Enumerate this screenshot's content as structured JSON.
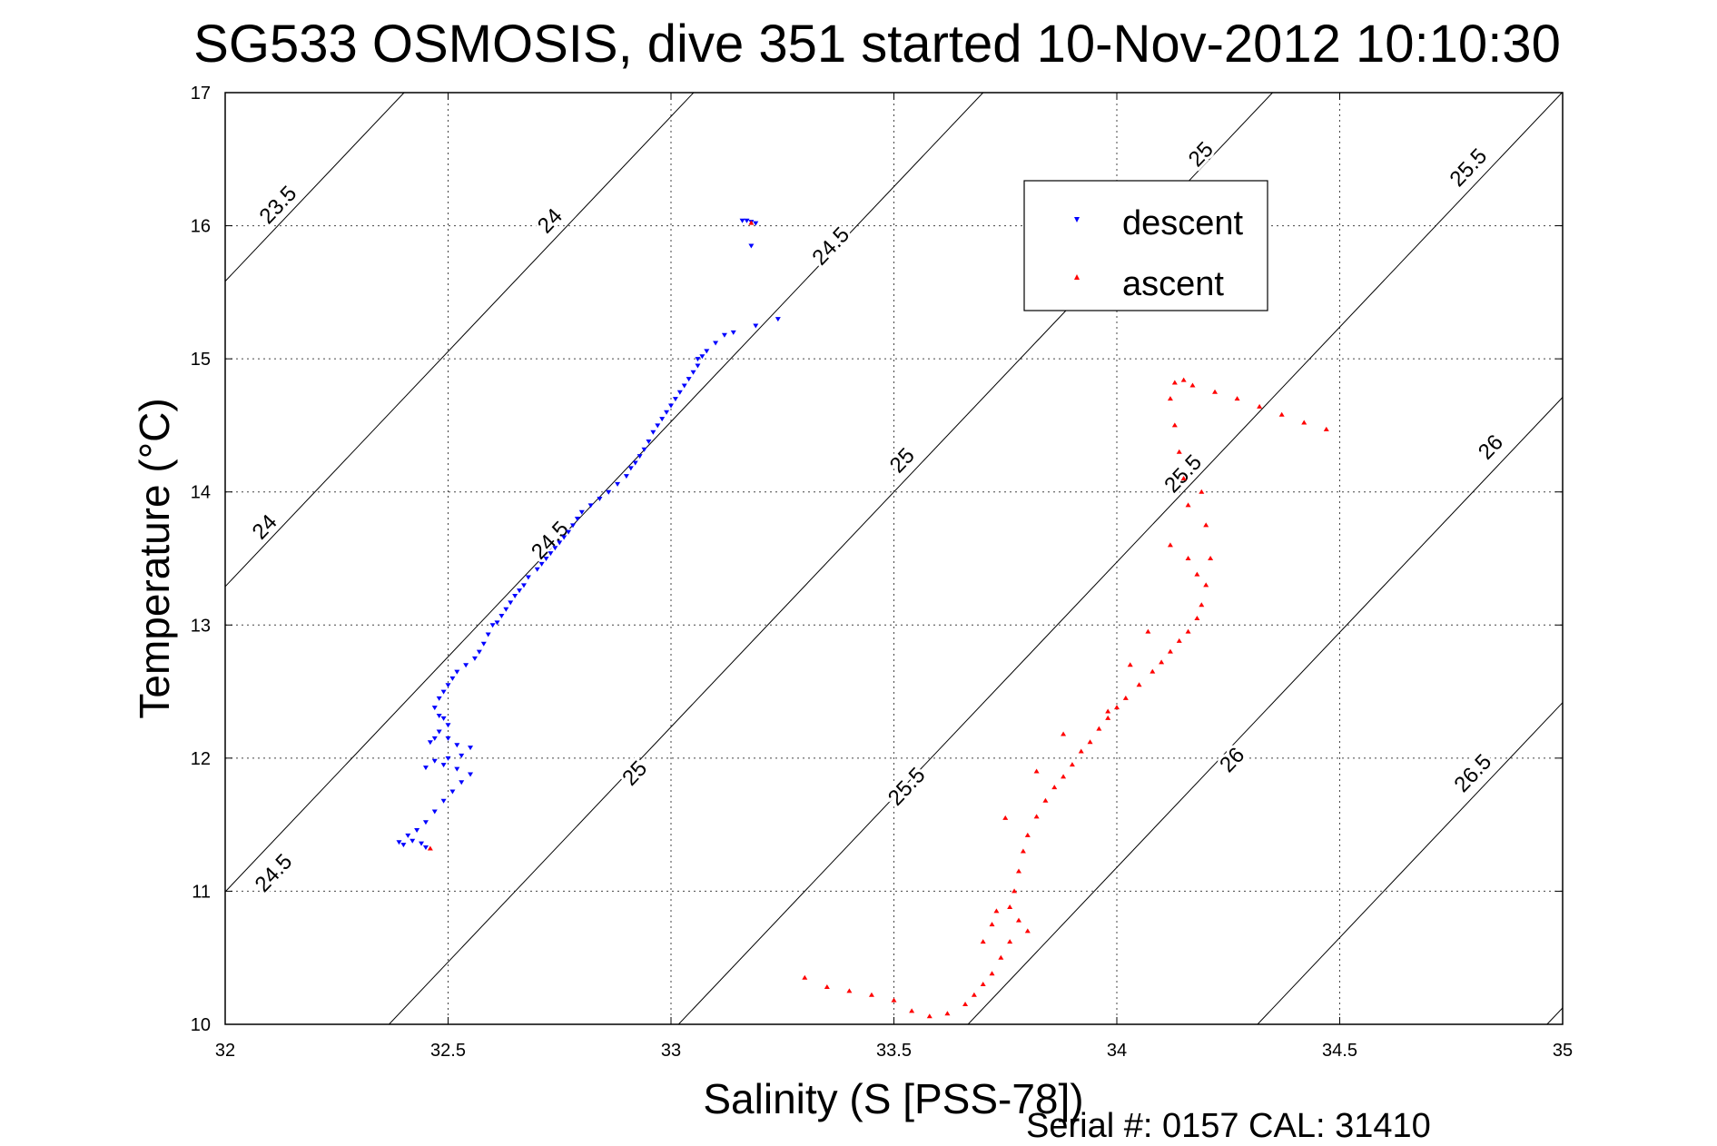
{
  "chart_data": {
    "type": "scatter",
    "title": "SG533 OSMOSIS, dive 351 started 10-Nov-2012 10:10:30",
    "xlabel": "Salinity (S [PSS-78])",
    "ylabel": "Temperature (°C)",
    "xlim": [
      32,
      35
    ],
    "ylim": [
      10,
      17
    ],
    "xticks": [
      "32",
      "32.5",
      "33",
      "33.5",
      "34",
      "34.5",
      "35"
    ],
    "yticks": [
      "10",
      "11",
      "12",
      "13",
      "14",
      "15",
      "16",
      "17"
    ],
    "grid": true,
    "legend_position": "top-right",
    "density_contours": {
      "color": "#000000",
      "levels": [
        "23.5",
        "24",
        "24.5",
        "25",
        "25.5",
        "26",
        "26.5"
      ],
      "labels": [
        {
          "text": "23.5",
          "s": 32.13,
          "t": 16.12
        },
        {
          "text": "24",
          "s": 32.74,
          "t": 16.0
        },
        {
          "text": "24.5",
          "s": 33.37,
          "t": 15.81
        },
        {
          "text": "25",
          "s": 34.2,
          "t": 16.5
        },
        {
          "text": "25.5",
          "s": 34.8,
          "t": 16.4
        },
        {
          "text": "24",
          "s": 32.1,
          "t": 13.7
        },
        {
          "text": "24.5",
          "s": 32.74,
          "t": 13.6
        },
        {
          "text": "25",
          "s": 33.53,
          "t": 14.2
        },
        {
          "text": "25.5",
          "s": 34.16,
          "t": 14.1
        },
        {
          "text": "26",
          "s": 34.85,
          "t": 14.3
        },
        {
          "text": "24.5",
          "s": 32.12,
          "t": 11.1
        },
        {
          "text": "25",
          "s": 32.93,
          "t": 11.85
        },
        {
          "text": "25.5",
          "s": 33.54,
          "t": 11.75
        },
        {
          "text": "26",
          "s": 34.27,
          "t": 11.95
        },
        {
          "text": "26.5",
          "s": 34.81,
          "t": 11.85
        }
      ]
    },
    "series": [
      {
        "name": "descent",
        "color": "#0000ff",
        "marker": "triangle-down",
        "points": [
          [
            33.17,
            16.04
          ],
          [
            33.18,
            16.03
          ],
          [
            33.16,
            16.04
          ],
          [
            33.19,
            16.02
          ],
          [
            33.18,
            15.85
          ],
          [
            33.24,
            15.3
          ],
          [
            33.19,
            15.25
          ],
          [
            33.14,
            15.2
          ],
          [
            33.12,
            15.18
          ],
          [
            33.1,
            15.12
          ],
          [
            33.08,
            15.06
          ],
          [
            33.07,
            15.02
          ],
          [
            33.06,
            15.0
          ],
          [
            33.06,
            14.95
          ],
          [
            33.05,
            14.9
          ],
          [
            33.04,
            14.85
          ],
          [
            33.03,
            14.8
          ],
          [
            33.02,
            14.75
          ],
          [
            33.01,
            14.7
          ],
          [
            33.0,
            14.65
          ],
          [
            32.99,
            14.6
          ],
          [
            32.98,
            14.55
          ],
          [
            32.97,
            14.5
          ],
          [
            32.96,
            14.45
          ],
          [
            32.95,
            14.38
          ],
          [
            32.94,
            14.32
          ],
          [
            32.93,
            14.27
          ],
          [
            32.92,
            14.22
          ],
          [
            32.91,
            14.18
          ],
          [
            32.9,
            14.12
          ],
          [
            32.88,
            14.06
          ],
          [
            32.86,
            14.0
          ],
          [
            32.84,
            13.95
          ],
          [
            32.82,
            13.9
          ],
          [
            32.8,
            13.85
          ],
          [
            32.79,
            13.8
          ],
          [
            32.78,
            13.75
          ],
          [
            32.77,
            13.7
          ],
          [
            32.76,
            13.66
          ],
          [
            32.75,
            13.62
          ],
          [
            32.74,
            13.58
          ],
          [
            32.73,
            13.54
          ],
          [
            32.72,
            13.5
          ],
          [
            32.71,
            13.46
          ],
          [
            32.7,
            13.42
          ],
          [
            32.68,
            13.36
          ],
          [
            32.67,
            13.3
          ],
          [
            32.66,
            13.26
          ],
          [
            32.65,
            13.22
          ],
          [
            32.64,
            13.17
          ],
          [
            32.63,
            13.12
          ],
          [
            32.62,
            13.07
          ],
          [
            32.61,
            13.02
          ],
          [
            32.6,
            13.0
          ],
          [
            32.59,
            12.93
          ],
          [
            32.58,
            12.86
          ],
          [
            32.57,
            12.8
          ],
          [
            32.56,
            12.75
          ],
          [
            32.54,
            12.7
          ],
          [
            32.52,
            12.65
          ],
          [
            32.51,
            12.6
          ],
          [
            32.5,
            12.55
          ],
          [
            32.49,
            12.5
          ],
          [
            32.48,
            12.45
          ],
          [
            32.47,
            12.38
          ],
          [
            32.48,
            12.32
          ],
          [
            32.49,
            12.3
          ],
          [
            32.5,
            12.25
          ],
          [
            32.48,
            12.2
          ],
          [
            32.47,
            12.15
          ],
          [
            32.46,
            12.12
          ],
          [
            32.5,
            12.15
          ],
          [
            32.52,
            12.1
          ],
          [
            32.55,
            12.08
          ],
          [
            32.53,
            12.02
          ],
          [
            32.5,
            12.0
          ],
          [
            32.47,
            11.98
          ],
          [
            32.45,
            11.93
          ],
          [
            32.49,
            11.95
          ],
          [
            32.52,
            11.92
          ],
          [
            32.55,
            11.88
          ],
          [
            32.53,
            11.82
          ],
          [
            32.51,
            11.75
          ],
          [
            32.49,
            11.68
          ],
          [
            32.47,
            11.6
          ],
          [
            32.45,
            11.52
          ],
          [
            32.43,
            11.46
          ],
          [
            32.41,
            11.42
          ],
          [
            32.39,
            11.37
          ],
          [
            32.4,
            11.35
          ],
          [
            32.42,
            11.38
          ],
          [
            32.44,
            11.36
          ],
          [
            32.45,
            11.33
          ]
        ]
      },
      {
        "name": "ascent",
        "color": "#ff0000",
        "marker": "triangle-up",
        "points": [
          [
            33.18,
            16.02
          ],
          [
            32.46,
            11.32
          ],
          [
            34.47,
            14.47
          ],
          [
            34.42,
            14.52
          ],
          [
            34.37,
            14.58
          ],
          [
            34.32,
            14.64
          ],
          [
            34.27,
            14.7
          ],
          [
            34.22,
            14.75
          ],
          [
            34.17,
            14.8
          ],
          [
            34.15,
            14.84
          ],
          [
            34.13,
            14.82
          ],
          [
            34.12,
            14.7
          ],
          [
            34.13,
            14.5
          ],
          [
            34.14,
            14.3
          ],
          [
            34.15,
            14.1
          ],
          [
            34.16,
            13.9
          ],
          [
            34.19,
            14.0
          ],
          [
            34.2,
            13.75
          ],
          [
            34.21,
            13.5
          ],
          [
            34.2,
            13.3
          ],
          [
            34.19,
            13.15
          ],
          [
            34.18,
            13.05
          ],
          [
            34.16,
            12.95
          ],
          [
            34.14,
            12.88
          ],
          [
            34.12,
            12.8
          ],
          [
            34.1,
            12.72
          ],
          [
            34.08,
            12.65
          ],
          [
            34.05,
            12.55
          ],
          [
            34.02,
            12.45
          ],
          [
            34.0,
            12.38
          ],
          [
            33.98,
            12.3
          ],
          [
            33.96,
            12.22
          ],
          [
            33.94,
            12.12
          ],
          [
            33.92,
            12.05
          ],
          [
            33.9,
            11.95
          ],
          [
            33.88,
            11.86
          ],
          [
            33.86,
            11.78
          ],
          [
            33.84,
            11.68
          ],
          [
            33.82,
            11.56
          ],
          [
            33.8,
            11.42
          ],
          [
            33.79,
            11.3
          ],
          [
            33.78,
            11.15
          ],
          [
            33.77,
            11.0
          ],
          [
            33.76,
            10.88
          ],
          [
            33.78,
            10.78
          ],
          [
            33.8,
            10.7
          ],
          [
            33.76,
            10.62
          ],
          [
            33.74,
            10.5
          ],
          [
            33.72,
            10.38
          ],
          [
            33.7,
            10.3
          ],
          [
            33.68,
            10.22
          ],
          [
            33.66,
            10.15
          ],
          [
            33.62,
            10.08
          ],
          [
            33.58,
            10.06
          ],
          [
            33.54,
            10.1
          ],
          [
            33.5,
            10.18
          ],
          [
            33.45,
            10.22
          ],
          [
            33.4,
            10.25
          ],
          [
            33.35,
            10.28
          ],
          [
            33.3,
            10.35
          ],
          [
            34.12,
            13.6
          ],
          [
            34.16,
            13.5
          ],
          [
            34.18,
            13.38
          ],
          [
            34.07,
            12.95
          ],
          [
            34.03,
            12.7
          ],
          [
            33.98,
            12.35
          ],
          [
            33.88,
            12.18
          ],
          [
            33.82,
            11.9
          ],
          [
            33.75,
            11.55
          ],
          [
            33.73,
            10.85
          ],
          [
            33.72,
            10.75
          ],
          [
            33.7,
            10.62
          ]
        ]
      }
    ]
  },
  "legend": {
    "descent_label": "descent",
    "ascent_label": "ascent"
  },
  "footer": {
    "serial_text": "Serial #: 0157  CAL: 31410"
  }
}
